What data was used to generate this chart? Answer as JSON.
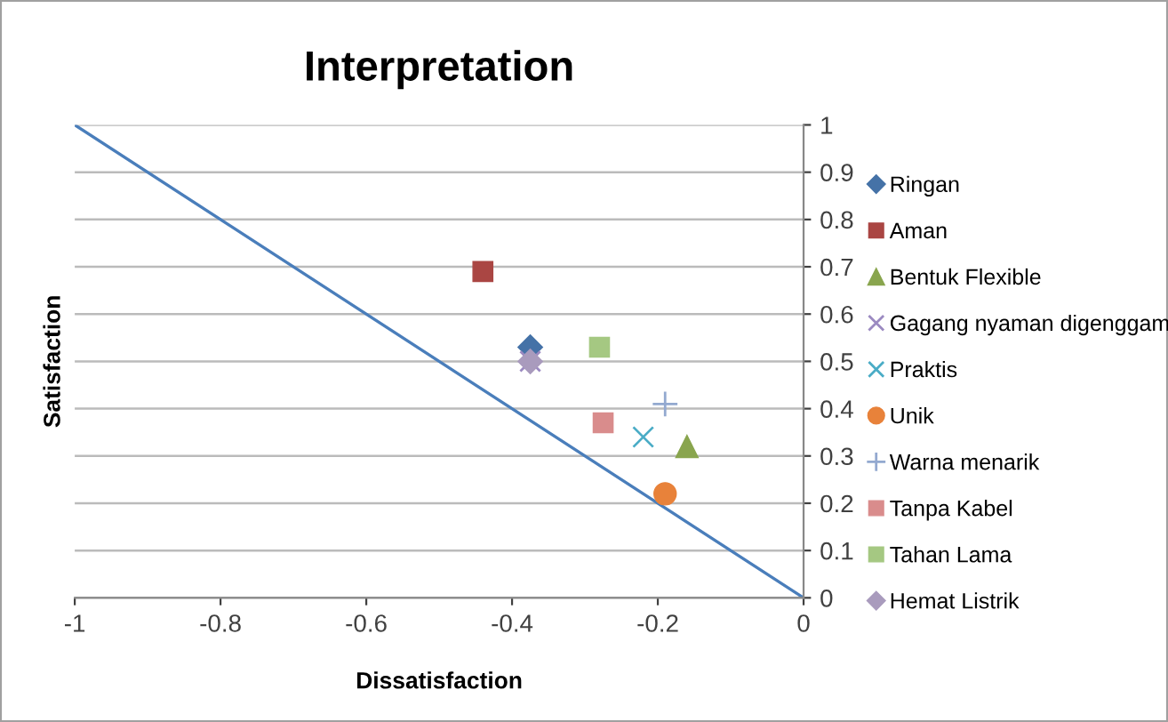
{
  "chart_data": {
    "type": "scatter",
    "title": "Interpretation",
    "xlabel": "Dissatisfaction",
    "ylabel": "Satisfaction",
    "xlim": [
      -1,
      0
    ],
    "ylim": [
      0,
      1
    ],
    "xticks": [
      -1,
      -0.8,
      -0.6,
      -0.4,
      -0.2,
      0
    ],
    "yticks": [
      0,
      0.1,
      0.2,
      0.3,
      0.4,
      0.5,
      0.6,
      0.7,
      0.8,
      0.9,
      1
    ],
    "grid": "y",
    "legend": "right",
    "series": [
      {
        "name": "Ringan",
        "color": "#4572a7",
        "marker": "diamond",
        "x": [
          -0.375
        ],
        "values": [
          0.53
        ]
      },
      {
        "name": "Aman",
        "color": "#aa4643",
        "marker": "square",
        "x": [
          -0.44
        ],
        "values": [
          0.69
        ]
      },
      {
        "name": "Bentuk Flexible",
        "color": "#89a54e",
        "marker": "triangle",
        "x": [
          -0.16
        ],
        "values": [
          0.32
        ]
      },
      {
        "name": "Gagang nyaman digenggam",
        "color": "#9b8ac1",
        "marker": "cross",
        "x": [
          -0.375
        ],
        "values": [
          0.5
        ]
      },
      {
        "name": "Praktis",
        "color": "#4aacc6",
        "marker": "cross",
        "x": [
          -0.22
        ],
        "values": [
          0.34
        ]
      },
      {
        "name": "Unik",
        "color": "#e8823a",
        "marker": "circle",
        "x": [
          -0.19
        ],
        "values": [
          0.22
        ]
      },
      {
        "name": "Warna menarik",
        "color": "#93a9d0",
        "marker": "plus",
        "x": [
          -0.19
        ],
        "values": [
          0.41
        ]
      },
      {
        "name": "Tanpa Kabel",
        "color": "#d98c8c",
        "marker": "square",
        "x": [
          -0.275
        ],
        "values": [
          0.37
        ]
      },
      {
        "name": "Tahan Lama",
        "color": "#a5c882",
        "marker": "square",
        "x": [
          -0.28
        ],
        "values": [
          0.53
        ]
      },
      {
        "name": "Hemat Listrik",
        "color": "#a99bbd",
        "marker": "diamond",
        "x": [
          -0.375
        ],
        "values": [
          0.5
        ]
      },
      {
        "type": "line",
        "color": "#4a7ebb",
        "x": [
          -1,
          0
        ],
        "values": [
          1,
          0
        ]
      }
    ]
  }
}
